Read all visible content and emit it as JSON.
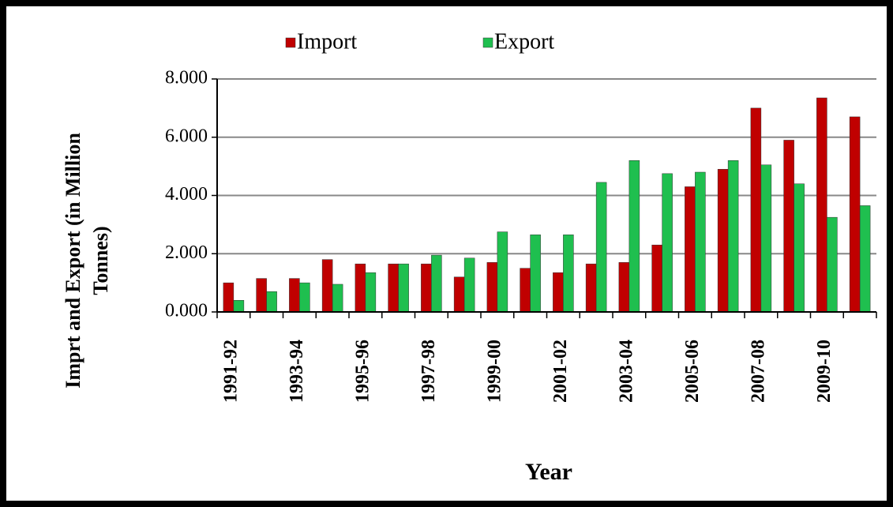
{
  "chart_data": {
    "type": "bar",
    "ylabel": [
      "Imprt and Export (in Million",
      "Tonnes)"
    ],
    "xlabel": "Year",
    "categories": [
      "1991-92",
      null,
      "1993-94",
      null,
      "1995-96",
      null,
      "1997-98",
      null,
      "1999-00",
      null,
      "2001-02",
      null,
      "2003-04",
      null,
      "2005-06",
      null,
      "2007-08",
      null,
      "2009-10",
      null
    ],
    "series": [
      {
        "name": "Import",
        "color": "#c00000",
        "values": [
          1.0,
          1.15,
          1.15,
          1.8,
          1.65,
          1.65,
          1.65,
          1.2,
          1.7,
          1.5,
          1.35,
          1.65,
          1.7,
          2.3,
          4.3,
          4.9,
          7.0,
          5.9,
          7.35,
          6.7
        ]
      },
      {
        "name": "Export",
        "color": "#1fbf4f",
        "values": [
          0.4,
          0.7,
          1.0,
          0.95,
          1.35,
          1.65,
          1.95,
          1.85,
          2.75,
          2.65,
          2.65,
          4.45,
          5.2,
          4.75,
          4.8,
          5.2,
          5.05,
          4.4,
          3.25,
          3.65
        ]
      }
    ],
    "ylim": [
      0,
      8
    ],
    "yticks": [
      {
        "value": 0,
        "label": "0.000"
      },
      {
        "value": 2,
        "label": "2.000"
      },
      {
        "value": 4,
        "label": "4.000"
      },
      {
        "value": 6,
        "label": "6.000"
      },
      {
        "value": 8,
        "label": "8.000"
      }
    ],
    "grid": true,
    "legend": "top"
  }
}
